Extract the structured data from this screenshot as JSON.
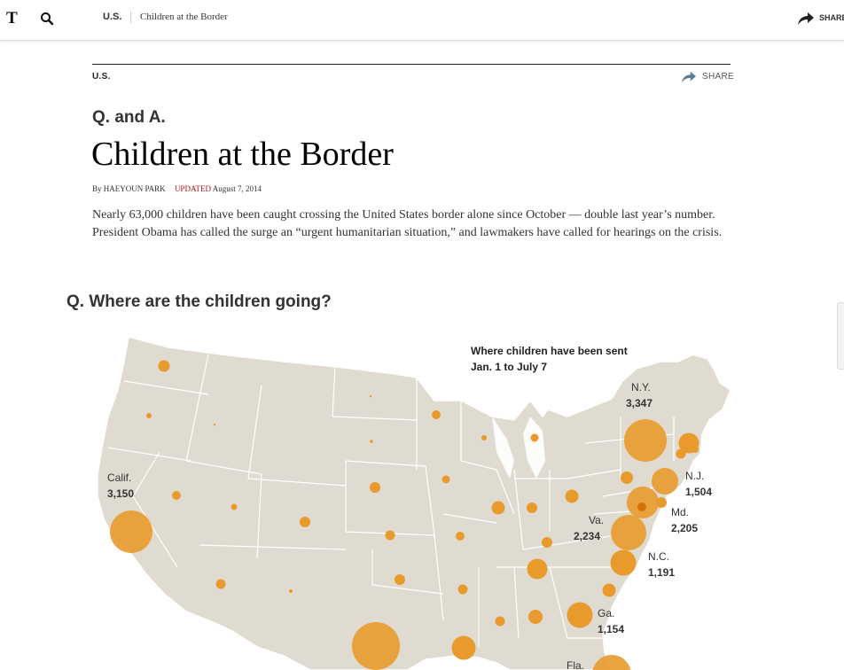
{
  "nav": {
    "logo_glyph": "T",
    "section": "U.S.",
    "title": "Children at the Border",
    "share": "SHARE"
  },
  "article": {
    "kicker": "U.S.",
    "share_label": "SHARE",
    "qa_label": "Q. and A.",
    "headline": "Children at the Border",
    "byline": "By HAEYOUN PARK",
    "updated_label": "UPDATED",
    "updated_date": "August 7, 2014",
    "intro": "Nearly 63,000 children have been caught crossing the United States border alone since October — double last year’s number. President Obama has called the surge an “urgent humanitarian situation,” and lawmakers have called for hearings on the crisis."
  },
  "section": {
    "question": "Q. Where are the children going?"
  },
  "map": {
    "title_line1": "Where children have been sent",
    "title_line2": "Jan. 1 to July 7",
    "land_color": "#e0dbd0",
    "bubble_color": "#e89a2c",
    "labels": [
      {
        "state": "Calif.",
        "value": "3,150"
      },
      {
        "state": "N.Y.",
        "value": "3,347"
      },
      {
        "state": "N.J.",
        "value": "1,504"
      },
      {
        "state": "Md.",
        "value": "2,205"
      },
      {
        "state": "Va.",
        "value": "2,234"
      },
      {
        "state": "N.C.",
        "value": "1,191"
      },
      {
        "state": "Ga.",
        "value": "1,154"
      },
      {
        "state": "Fla.",
        "value": ""
      }
    ]
  },
  "icons": {
    "search": "search-icon",
    "share": "share-arrow-icon"
  }
}
